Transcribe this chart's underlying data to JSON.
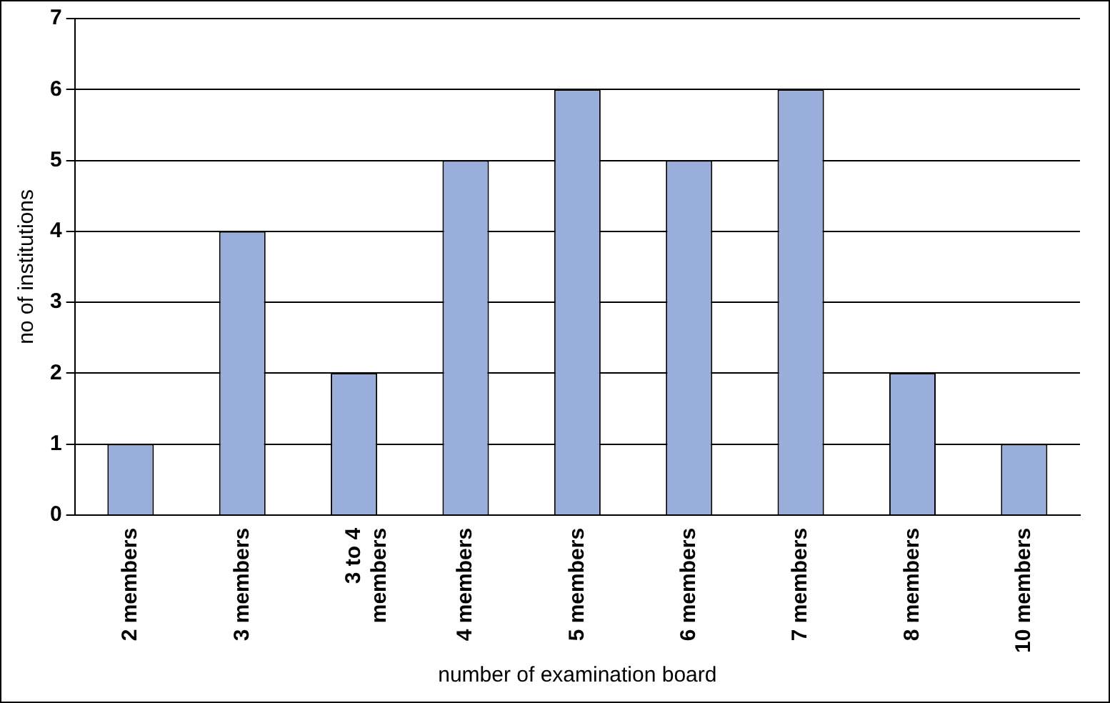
{
  "chart_data": {
    "type": "bar",
    "xlabel": "number of examination board",
    "ylabel": "no of institutions",
    "categories": [
      "2 members",
      "3 members",
      "3 to 4 members",
      "4 members",
      "5 members",
      "6 members",
      "7 members",
      "8 members",
      "10 members"
    ],
    "values": [
      1,
      4,
      2,
      5,
      6,
      5,
      6,
      2,
      1
    ],
    "color": "#9aaedb",
    "ylim": [
      0,
      7
    ],
    "yticks": [
      0,
      1,
      2,
      3,
      4,
      5,
      6,
      7
    ],
    "grid": "y",
    "legend": false
  }
}
